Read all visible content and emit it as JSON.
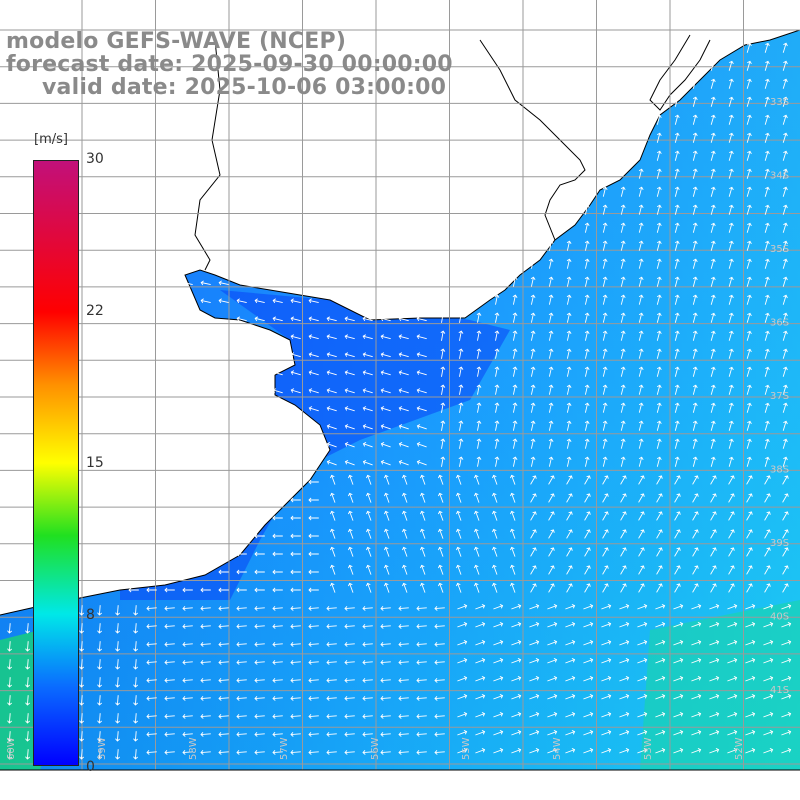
{
  "header": {
    "title_line1": "modelo GEFS-WAVE (NCEP)",
    "title_line2": "forecast date: 2025-09-30 00:00:00",
    "title_line3": "valid date: 2025-10-06 03:00:00"
  },
  "colorbar": {
    "unit": "[m/s]",
    "ticks": [
      "30",
      "22",
      "15",
      "8",
      "0"
    ],
    "tick_values": [
      30,
      22,
      15,
      8,
      0
    ],
    "range": [
      0,
      30
    ],
    "colors": [
      "#0000ff",
      "#0a6cff",
      "#00e8e8",
      "#20e020",
      "#ffff00",
      "#ff9000",
      "#ff0000",
      "#c2107a"
    ]
  },
  "map": {
    "latitude_labels": [
      "33S",
      "34S",
      "35S",
      "36S",
      "37S",
      "38S",
      "39S",
      "40S",
      "41S"
    ],
    "longitude_labels": [
      "60W",
      "59W",
      "58W",
      "57W",
      "56W",
      "55W",
      "54W",
      "53W",
      "52W"
    ],
    "land_color": "#ffffff",
    "coast_color": "#000000",
    "grid_color": "#999999",
    "arrow_color": "#ffffff",
    "field": "wind speed and direction"
  }
}
